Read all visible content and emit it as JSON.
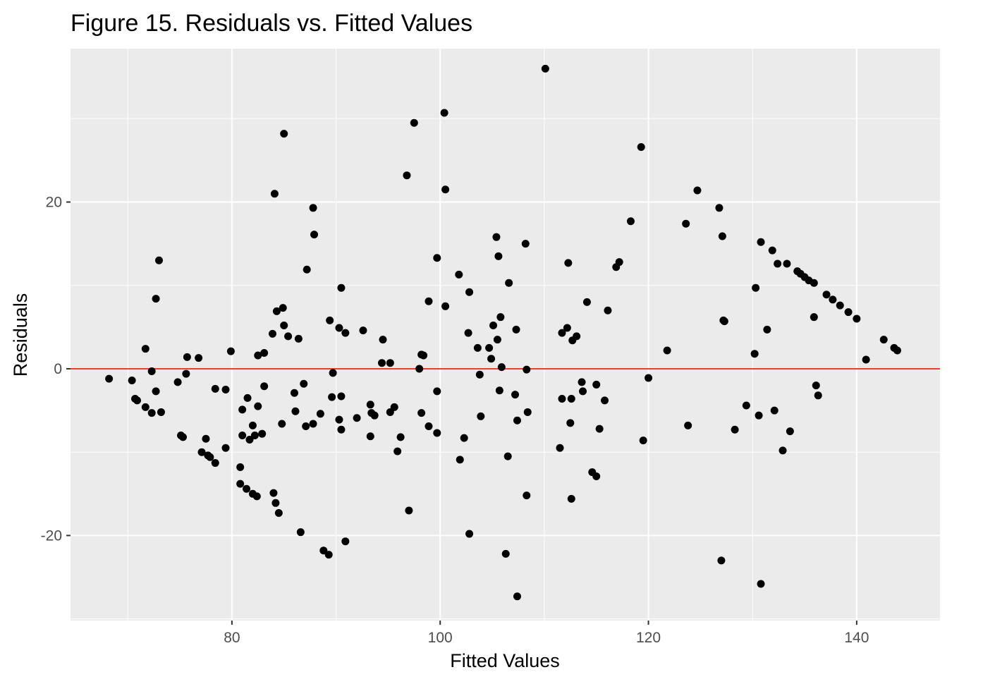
{
  "chart_data": {
    "type": "scatter",
    "title": "Figure 15. Residuals vs. Fitted Values",
    "xlabel": "Fitted Values",
    "ylabel": "Residuals",
    "xlim": [
      64.5,
      148
    ],
    "ylim": [
      -30.2,
      38.4
    ],
    "x_ticks": [
      80,
      100,
      120,
      140
    ],
    "x_tick_labels": [
      "80",
      "100",
      "120",
      "140"
    ],
    "y_ticks": [
      -20,
      0,
      20
    ],
    "y_tick_labels": [
      "-20",
      "0",
      "20"
    ],
    "grid": true,
    "reference_line": {
      "y": 0,
      "color": "#e8412f"
    },
    "point_color": "#000000",
    "panel_color": "#ebebeb",
    "points": [
      [
        68.2,
        -1.2
      ],
      [
        70.4,
        -1.4
      ],
      [
        70.7,
        -3.6
      ],
      [
        70.9,
        -3.8
      ],
      [
        71.7,
        -4.6
      ],
      [
        71.7,
        2.4
      ],
      [
        72.3,
        -0.3
      ],
      [
        72.3,
        -5.3
      ],
      [
        72.7,
        8.4
      ],
      [
        72.7,
        -2.7
      ],
      [
        73.0,
        13.0
      ],
      [
        73.2,
        -5.2
      ],
      [
        74.8,
        -1.6
      ],
      [
        75.1,
        -8.0
      ],
      [
        75.3,
        -8.2
      ],
      [
        75.7,
        1.4
      ],
      [
        75.6,
        -0.6
      ],
      [
        76.8,
        1.3
      ],
      [
        77.1,
        -10.0
      ],
      [
        77.5,
        -8.4
      ],
      [
        77.7,
        -10.4
      ],
      [
        77.9,
        -10.6
      ],
      [
        78.4,
        -11.3
      ],
      [
        78.4,
        -2.4
      ],
      [
        79.4,
        -9.5
      ],
      [
        79.4,
        -2.5
      ],
      [
        79.9,
        2.1
      ],
      [
        80.8,
        -11.8
      ],
      [
        80.8,
        -13.8
      ],
      [
        81.0,
        -4.9
      ],
      [
        81.0,
        -8.0
      ],
      [
        81.4,
        -14.4
      ],
      [
        81.5,
        -3.5
      ],
      [
        81.7,
        -8.5
      ],
      [
        82.0,
        -15.0
      ],
      [
        82.0,
        -6.8
      ],
      [
        82.2,
        -8.0
      ],
      [
        82.4,
        -15.3
      ],
      [
        82.5,
        1.6
      ],
      [
        82.5,
        -4.5
      ],
      [
        82.9,
        -7.8
      ],
      [
        83.1,
        1.9
      ],
      [
        83.1,
        -2.1
      ],
      [
        83.9,
        4.2
      ],
      [
        84.0,
        -14.9
      ],
      [
        84.1,
        21.0
      ],
      [
        84.2,
        -16.1
      ],
      [
        84.3,
        6.9
      ],
      [
        84.5,
        -17.3
      ],
      [
        84.8,
        -6.6
      ],
      [
        84.9,
        7.3
      ],
      [
        85.0,
        5.2
      ],
      [
        85.0,
        28.2
      ],
      [
        85.4,
        3.9
      ],
      [
        86.0,
        -2.9
      ],
      [
        86.1,
        -5.1
      ],
      [
        86.4,
        3.6
      ],
      [
        86.6,
        -19.6
      ],
      [
        86.9,
        -1.8
      ],
      [
        87.1,
        -6.9
      ],
      [
        87.2,
        11.9
      ],
      [
        87.8,
        -6.6
      ],
      [
        87.8,
        19.3
      ],
      [
        87.9,
        16.1
      ],
      [
        88.5,
        -5.4
      ],
      [
        88.8,
        -21.8
      ],
      [
        89.3,
        -22.3
      ],
      [
        89.4,
        5.8
      ],
      [
        89.6,
        -3.4
      ],
      [
        89.7,
        -0.5
      ],
      [
        90.3,
        4.9
      ],
      [
        90.3,
        -6.1
      ],
      [
        90.5,
        -7.3
      ],
      [
        90.5,
        9.7
      ],
      [
        90.5,
        -3.3
      ],
      [
        90.9,
        4.3
      ],
      [
        90.9,
        -20.7
      ],
      [
        92.0,
        -5.9
      ],
      [
        92.6,
        4.6
      ],
      [
        93.3,
        -8.1
      ],
      [
        93.3,
        -4.3
      ],
      [
        93.4,
        -5.3
      ],
      [
        93.7,
        -5.6
      ],
      [
        94.4,
        0.7
      ],
      [
        94.5,
        3.5
      ],
      [
        95.2,
        0.7
      ],
      [
        95.2,
        -5.2
      ],
      [
        95.6,
        -4.6
      ],
      [
        95.9,
        -9.9
      ],
      [
        96.2,
        -8.2
      ],
      [
        96.8,
        23.2
      ],
      [
        97.0,
        -17.0
      ],
      [
        97.5,
        29.5
      ],
      [
        98.0,
        0.0
      ],
      [
        98.2,
        1.7
      ],
      [
        98.2,
        -5.3
      ],
      [
        98.4,
        1.6
      ],
      [
        98.9,
        8.1
      ],
      [
        98.9,
        -6.9
      ],
      [
        99.7,
        13.3
      ],
      [
        99.7,
        -7.7
      ],
      [
        99.7,
        -2.7
      ],
      [
        100.4,
        30.7
      ],
      [
        100.5,
        7.5
      ],
      [
        100.5,
        21.5
      ],
      [
        101.8,
        11.3
      ],
      [
        101.9,
        -10.9
      ],
      [
        102.3,
        -8.3
      ],
      [
        102.7,
        4.3
      ],
      [
        102.8,
        -19.8
      ],
      [
        102.8,
        9.2
      ],
      [
        103.6,
        2.5
      ],
      [
        103.8,
        -0.7
      ],
      [
        103.9,
        -5.7
      ],
      [
        104.7,
        2.5
      ],
      [
        104.9,
        1.2
      ],
      [
        105.1,
        5.2
      ],
      [
        105.4,
        15.8
      ],
      [
        105.5,
        3.5
      ],
      [
        105.6,
        13.5
      ],
      [
        105.7,
        -2.6
      ],
      [
        105.8,
        6.2
      ],
      [
        105.9,
        0.2
      ],
      [
        106.3,
        -22.2
      ],
      [
        106.5,
        -10.5
      ],
      [
        106.6,
        10.3
      ],
      [
        107.2,
        -3.1
      ],
      [
        107.3,
        4.7
      ],
      [
        107.4,
        -27.3
      ],
      [
        107.4,
        -6.2
      ],
      [
        108.2,
        15.0
      ],
      [
        108.3,
        -15.2
      ],
      [
        108.3,
        -0.1
      ],
      [
        108.4,
        -5.2
      ],
      [
        110.1,
        36.0
      ],
      [
        111.5,
        -9.5
      ],
      [
        111.7,
        4.3
      ],
      [
        111.7,
        -3.6
      ],
      [
        112.2,
        4.9
      ],
      [
        112.3,
        12.7
      ],
      [
        112.5,
        -6.5
      ],
      [
        112.6,
        -3.6
      ],
      [
        112.6,
        -15.6
      ],
      [
        112.7,
        3.4
      ],
      [
        113.1,
        3.9
      ],
      [
        113.6,
        -1.6
      ],
      [
        113.7,
        -2.7
      ],
      [
        114.1,
        8.0
      ],
      [
        114.6,
        -12.4
      ],
      [
        115.0,
        -12.9
      ],
      [
        115.0,
        -1.9
      ],
      [
        115.3,
        -7.2
      ],
      [
        115.8,
        -3.8
      ],
      [
        116.1,
        7.0
      ],
      [
        116.9,
        12.2
      ],
      [
        117.2,
        12.8
      ],
      [
        118.3,
        17.7
      ],
      [
        119.3,
        26.6
      ],
      [
        119.5,
        -8.6
      ],
      [
        120.0,
        -1.1
      ],
      [
        121.8,
        2.2
      ],
      [
        123.6,
        17.4
      ],
      [
        123.8,
        -6.8
      ],
      [
        124.7,
        21.4
      ],
      [
        126.8,
        19.3
      ],
      [
        127.0,
        -23.0
      ],
      [
        127.1,
        15.9
      ],
      [
        127.2,
        5.8
      ],
      [
        127.3,
        5.7
      ],
      [
        128.3,
        -7.3
      ],
      [
        129.4,
        -4.4
      ],
      [
        130.2,
        1.8
      ],
      [
        130.3,
        9.7
      ],
      [
        130.6,
        -5.6
      ],
      [
        130.8,
        15.2
      ],
      [
        130.8,
        -25.8
      ],
      [
        131.4,
        4.7
      ],
      [
        131.9,
        14.2
      ],
      [
        132.1,
        -5.0
      ],
      [
        132.4,
        12.6
      ],
      [
        132.9,
        -9.8
      ],
      [
        133.3,
        12.6
      ],
      [
        133.6,
        -7.5
      ],
      [
        134.3,
        11.7
      ],
      [
        134.6,
        11.4
      ],
      [
        135.0,
        11.0
      ],
      [
        135.4,
        10.6
      ],
      [
        135.9,
        10.3
      ],
      [
        135.9,
        6.2
      ],
      [
        136.1,
        -2.0
      ],
      [
        136.3,
        -3.2
      ],
      [
        137.1,
        8.9
      ],
      [
        137.7,
        8.3
      ],
      [
        138.4,
        7.6
      ],
      [
        139.2,
        6.8
      ],
      [
        140.0,
        6.0
      ],
      [
        140.9,
        1.1
      ],
      [
        142.6,
        3.5
      ],
      [
        143.6,
        2.5
      ],
      [
        143.9,
        2.2
      ]
    ]
  }
}
